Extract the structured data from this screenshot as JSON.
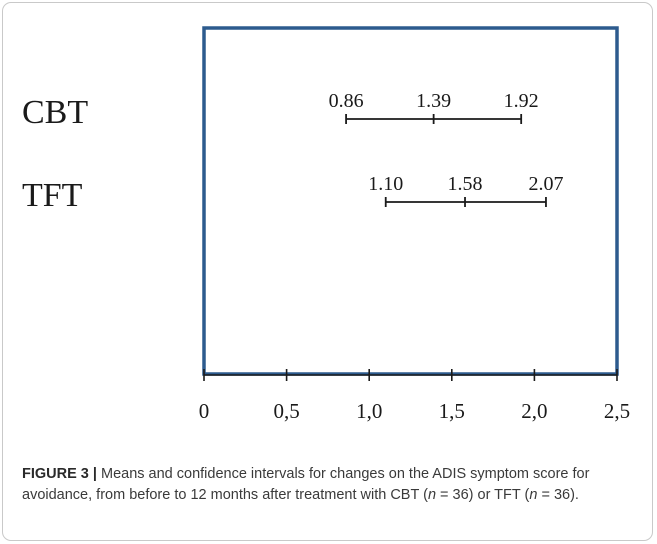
{
  "chart_data": {
    "type": "interval",
    "xlim": [
      0,
      2.5
    ],
    "x_tick_labels": [
      "0",
      "0,5",
      "1,0",
      "1,5",
      "2,0",
      "2,5"
    ],
    "x_ticks": [
      0,
      0.5,
      1.0,
      1.5,
      2.0,
      2.5
    ],
    "series": [
      {
        "name": "CBT",
        "lower": 0.86,
        "mean": 1.39,
        "upper": 1.92,
        "lower_label": "0.86",
        "mean_label": "1.39",
        "upper_label": "1.92"
      },
      {
        "name": "TFT",
        "lower": 1.1,
        "mean": 1.58,
        "upper": 2.07,
        "lower_label": "1.10",
        "mean_label": "1.58",
        "upper_label": "2.07"
      }
    ],
    "frame_color": "#2d5b8e",
    "line_color": "#1a1a1a",
    "grid": false
  },
  "caption": {
    "label": "FIGURE 3 |",
    "text_part1": " Means and confidence intervals for changes on the ADIS symptom score for avoidance, from before to 12 months after treatment with CBT (",
    "n_symbol_1": "n",
    "text_part2": " = 36) or TFT (",
    "n_symbol_2": "n",
    "text_part3": " = 36)."
  }
}
